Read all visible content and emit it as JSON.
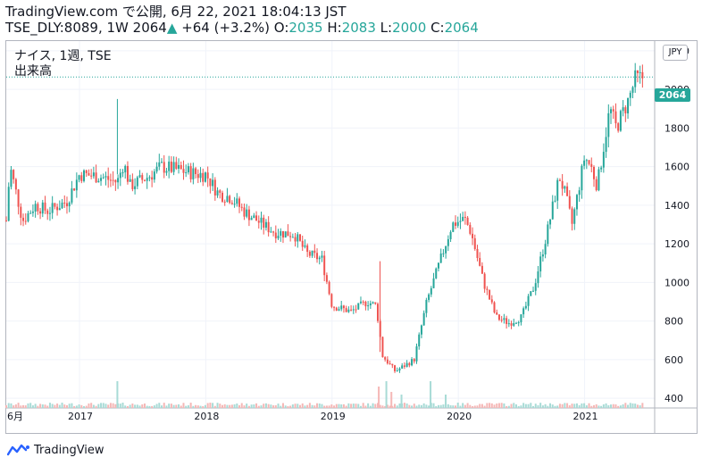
{
  "header": {
    "line1": "TradingView.com で公開, 6月 22, 2021 18:04:13 JST",
    "symbol": "TSE_DLY:8089, 1W",
    "last": "2064",
    "change": "+64 (+3.2%)",
    "o_label": "O:",
    "o_value": "2035",
    "h_label": "H:",
    "h_value": "2083",
    "l_label": "L:",
    "l_value": "2000",
    "c_label": "C:",
    "c_value": "2064"
  },
  "legend": {
    "title": "ナイス, 1週, TSE",
    "volume": "出来高"
  },
  "currency": "JPY",
  "price_tag": "2064",
  "footer": {
    "brand": "TradingView"
  },
  "colors": {
    "up": "#26a69a",
    "down": "#ef5350",
    "grid": "#f0f3fa",
    "axis_text": "#131722",
    "last_line": "#26a69a"
  },
  "chart_data": {
    "type": "candlestick",
    "interval": "1W",
    "y_ticks": [
      400,
      600,
      800,
      1000,
      1200,
      1400,
      1600,
      1800,
      2000,
      2200
    ],
    "y_range": [
      350,
      2250
    ],
    "x_labels": [
      {
        "t": 2016.42,
        "label": "6月"
      },
      {
        "t": 2017.0,
        "label": "2017"
      },
      {
        "t": 2018.0,
        "label": "2018"
      },
      {
        "t": 2019.0,
        "label": "2019"
      },
      {
        "t": 2020.0,
        "label": "2020"
      },
      {
        "t": 2021.0,
        "label": "2021"
      }
    ],
    "x_range": [
      2016.42,
      2021.47
    ],
    "last_price": 2064,
    "price_path": [
      [
        2016.42,
        1320
      ],
      [
        2016.45,
        1600
      ],
      [
        2016.55,
        1320
      ],
      [
        2016.65,
        1400
      ],
      [
        2016.75,
        1370
      ],
      [
        2016.9,
        1420
      ],
      [
        2017.0,
        1560
      ],
      [
        2017.15,
        1550
      ],
      [
        2017.3,
        1520
      ],
      [
        2017.35,
        1620
      ],
      [
        2017.4,
        1500
      ],
      [
        2017.55,
        1550
      ],
      [
        2017.65,
        1600
      ],
      [
        2017.8,
        1580
      ],
      [
        2017.95,
        1560
      ],
      [
        2018.0,
        1560
      ],
      [
        2018.1,
        1460
      ],
      [
        2018.2,
        1440
      ],
      [
        2018.3,
        1370
      ],
      [
        2018.45,
        1300
      ],
      [
        2018.55,
        1260
      ],
      [
        2018.7,
        1250
      ],
      [
        2018.8,
        1150
      ],
      [
        2018.92,
        1120
      ],
      [
        2019.0,
        880
      ],
      [
        2019.15,
        850
      ],
      [
        2019.28,
        900
      ],
      [
        2019.35,
        880
      ],
      [
        2019.4,
        620
      ],
      [
        2019.5,
        540
      ],
      [
        2019.65,
        600
      ],
      [
        2019.75,
        900
      ],
      [
        2019.85,
        1100
      ],
      [
        2019.95,
        1300
      ],
      [
        2020.05,
        1330
      ],
      [
        2020.1,
        1260
      ],
      [
        2020.2,
        1000
      ],
      [
        2020.3,
        820
      ],
      [
        2020.4,
        790
      ],
      [
        2020.5,
        820
      ],
      [
        2020.6,
        980
      ],
      [
        2020.7,
        1250
      ],
      [
        2020.8,
        1550
      ],
      [
        2020.85,
        1450
      ],
      [
        2020.9,
        1300
      ],
      [
        2021.0,
        1650
      ],
      [
        2021.05,
        1600
      ],
      [
        2021.1,
        1500
      ],
      [
        2021.15,
        1700
      ],
      [
        2021.2,
        1900
      ],
      [
        2021.25,
        1800
      ],
      [
        2021.35,
        1950
      ],
      [
        2021.4,
        2050
      ],
      [
        2021.47,
        2064
      ]
    ],
    "volume_spikes": [
      {
        "t": 2017.3,
        "v": 1.0,
        "up": true
      },
      {
        "t": 2019.37,
        "v": 0.8,
        "up": false
      },
      {
        "t": 2019.43,
        "v": 1.0,
        "up": true
      },
      {
        "t": 2019.47,
        "v": 0.6,
        "up": false
      },
      {
        "t": 2019.55,
        "v": 0.5,
        "up": true
      },
      {
        "t": 2019.78,
        "v": 1.0,
        "up": true
      },
      {
        "t": 2019.9,
        "v": 0.5,
        "up": true
      }
    ]
  }
}
